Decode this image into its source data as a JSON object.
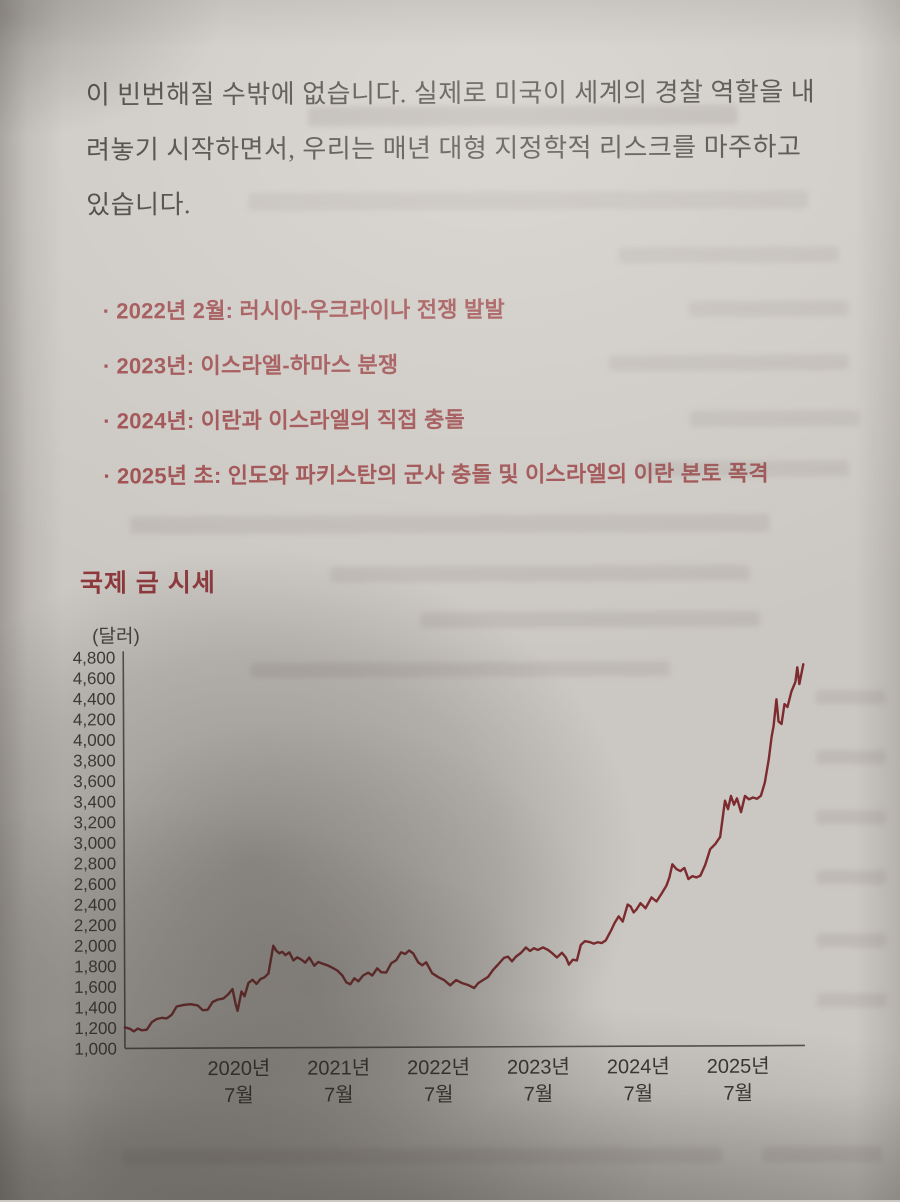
{
  "page": {
    "paragraph_lines": [
      "이 빈번해질 수밖에 없습니다. 실제로 미국이 세계의 경찰 역할을 내",
      "려놓기 시작하면서, 우리는 매년 대형 지정학적 리스크를 마주하고",
      "있습니다."
    ],
    "bullet_marker": "·",
    "bullets": [
      "2022년 2월: 러시아-우크라이나 전쟁 발발",
      "2023년: 이스라엘-하마스 분쟁",
      "2024년: 이란과 이스라엘의 직접 충돌",
      "2025년 초: 인도와 파키스탄의 군사 충돌 및 이스라엘의 이란 본토 폭격"
    ],
    "accent_colors": {
      "bullet_text": "#9c4a4c",
      "chart_title": "#8e383c"
    }
  },
  "chart_data": {
    "type": "line",
    "title": "국제 금 시세",
    "unit_label": "(달러)",
    "line_color": "#7d2b2e",
    "axis_color": "#55524d",
    "grid": false,
    "legend": false,
    "ylim": [
      1000,
      4800
    ],
    "y_ticks": [
      4800,
      4600,
      4400,
      4200,
      4000,
      3800,
      3600,
      3400,
      3200,
      3000,
      2800,
      2600,
      2400,
      2200,
      2000,
      1800,
      1600,
      1400,
      1200,
      1000
    ],
    "x_range": [
      2019.36,
      2026.17
    ],
    "x_ticks": [
      {
        "x": 2020.5,
        "line1": "2020년",
        "line2": "7월"
      },
      {
        "x": 2021.5,
        "line1": "2021년",
        "line2": "7월"
      },
      {
        "x": 2022.5,
        "line1": "2022년",
        "line2": "7월"
      },
      {
        "x": 2023.5,
        "line1": "2023년",
        "line2": "7월"
      },
      {
        "x": 2024.5,
        "line1": "2024년",
        "line2": "7월"
      },
      {
        "x": 2025.5,
        "line1": "2025년",
        "line2": "7월"
      }
    ],
    "points": [
      [
        2019.36,
        1205
      ],
      [
        2019.41,
        1190
      ],
      [
        2019.45,
        1165
      ],
      [
        2019.49,
        1192
      ],
      [
        2019.53,
        1175
      ],
      [
        2019.58,
        1182
      ],
      [
        2019.63,
        1255
      ],
      [
        2019.68,
        1285
      ],
      [
        2019.73,
        1295
      ],
      [
        2019.78,
        1290
      ],
      [
        2019.83,
        1325
      ],
      [
        2019.88,
        1405
      ],
      [
        2019.95,
        1420
      ],
      [
        2020.02,
        1428
      ],
      [
        2020.09,
        1415
      ],
      [
        2020.14,
        1368
      ],
      [
        2020.19,
        1372
      ],
      [
        2020.24,
        1448
      ],
      [
        2020.29,
        1470
      ],
      [
        2020.35,
        1482
      ],
      [
        2020.4,
        1525
      ],
      [
        2020.44,
        1572
      ],
      [
        2020.47,
        1430
      ],
      [
        2020.49,
        1362
      ],
      [
        2020.53,
        1548
      ],
      [
        2020.56,
        1502
      ],
      [
        2020.6,
        1632
      ],
      [
        2020.64,
        1662
      ],
      [
        2020.68,
        1622
      ],
      [
        2020.72,
        1668
      ],
      [
        2020.76,
        1685
      ],
      [
        2020.8,
        1722
      ],
      [
        2020.85,
        1992
      ],
      [
        2020.88,
        1942
      ],
      [
        2020.91,
        1918
      ],
      [
        2020.94,
        1932
      ],
      [
        2020.97,
        1900
      ],
      [
        2021.01,
        1926
      ],
      [
        2021.05,
        1848
      ],
      [
        2021.09,
        1878
      ],
      [
        2021.13,
        1856
      ],
      [
        2021.17,
        1826
      ],
      [
        2021.21,
        1876
      ],
      [
        2021.26,
        1796
      ],
      [
        2021.3,
        1832
      ],
      [
        2021.34,
        1816
      ],
      [
        2021.39,
        1800
      ],
      [
        2021.44,
        1776
      ],
      [
        2021.49,
        1748
      ],
      [
        2021.54,
        1700
      ],
      [
        2021.58,
        1632
      ],
      [
        2021.62,
        1614
      ],
      [
        2021.66,
        1672
      ],
      [
        2021.7,
        1642
      ],
      [
        2021.75,
        1700
      ],
      [
        2021.8,
        1726
      ],
      [
        2021.84,
        1698
      ],
      [
        2021.89,
        1768
      ],
      [
        2021.93,
        1730
      ],
      [
        2021.98,
        1726
      ],
      [
        2022.03,
        1816
      ],
      [
        2022.08,
        1846
      ],
      [
        2022.13,
        1922
      ],
      [
        2022.17,
        1906
      ],
      [
        2022.21,
        1940
      ],
      [
        2022.25,
        1912
      ],
      [
        2022.3,
        1824
      ],
      [
        2022.34,
        1796
      ],
      [
        2022.38,
        1824
      ],
      [
        2022.44,
        1718
      ],
      [
        2022.5,
        1680
      ],
      [
        2022.56,
        1650
      ],
      [
        2022.62,
        1600
      ],
      [
        2022.68,
        1650
      ],
      [
        2022.74,
        1620
      ],
      [
        2022.8,
        1602
      ],
      [
        2022.86,
        1572
      ],
      [
        2022.9,
        1620
      ],
      [
        2022.95,
        1650
      ],
      [
        2023.0,
        1680
      ],
      [
        2023.05,
        1748
      ],
      [
        2023.1,
        1800
      ],
      [
        2023.16,
        1864
      ],
      [
        2023.2,
        1876
      ],
      [
        2023.24,
        1830
      ],
      [
        2023.28,
        1876
      ],
      [
        2023.33,
        1912
      ],
      [
        2023.38,
        1964
      ],
      [
        2023.42,
        1930
      ],
      [
        2023.46,
        1956
      ],
      [
        2023.5,
        1940
      ],
      [
        2023.55,
        1964
      ],
      [
        2023.6,
        1940
      ],
      [
        2023.64,
        1910
      ],
      [
        2023.69,
        1866
      ],
      [
        2023.74,
        1912
      ],
      [
        2023.78,
        1864
      ],
      [
        2023.81,
        1796
      ],
      [
        2023.85,
        1844
      ],
      [
        2023.89,
        1836
      ],
      [
        2023.93,
        1986
      ],
      [
        2023.97,
        2022
      ],
      [
        2024.02,
        2014
      ],
      [
        2024.06,
        1998
      ],
      [
        2024.1,
        2012
      ],
      [
        2024.14,
        2004
      ],
      [
        2024.18,
        2030
      ],
      [
        2024.23,
        2120
      ],
      [
        2024.27,
        2200
      ],
      [
        2024.31,
        2262
      ],
      [
        2024.35,
        2212
      ],
      [
        2024.4,
        2377
      ],
      [
        2024.43,
        2358
      ],
      [
        2024.46,
        2300
      ],
      [
        2024.49,
        2330
      ],
      [
        2024.53,
        2390
      ],
      [
        2024.58,
        2340
      ],
      [
        2024.64,
        2445
      ],
      [
        2024.69,
        2405
      ],
      [
        2024.74,
        2480
      ],
      [
        2024.79,
        2560
      ],
      [
        2024.82,
        2640
      ],
      [
        2024.85,
        2766
      ],
      [
        2024.89,
        2720
      ],
      [
        2024.93,
        2700
      ],
      [
        2024.97,
        2730
      ],
      [
        2025.01,
        2622
      ],
      [
        2025.05,
        2650
      ],
      [
        2025.09,
        2638
      ],
      [
        2025.13,
        2655
      ],
      [
        2025.18,
        2760
      ],
      [
        2025.23,
        2912
      ],
      [
        2025.28,
        2960
      ],
      [
        2025.33,
        3030
      ],
      [
        2025.38,
        3382
      ],
      [
        2025.41,
        3300
      ],
      [
        2025.44,
        3428
      ],
      [
        2025.47,
        3342
      ],
      [
        2025.5,
        3404
      ],
      [
        2025.54,
        3270
      ],
      [
        2025.58,
        3428
      ],
      [
        2025.62,
        3395
      ],
      [
        2025.66,
        3412
      ],
      [
        2025.7,
        3400
      ],
      [
        2025.74,
        3430
      ],
      [
        2025.78,
        3560
      ],
      [
        2025.82,
        3784
      ],
      [
        2025.85,
        4000
      ],
      [
        2025.87,
        4104
      ],
      [
        2025.9,
        4366
      ],
      [
        2025.92,
        4150
      ],
      [
        2025.95,
        4126
      ],
      [
        2025.98,
        4318
      ],
      [
        2026.01,
        4290
      ],
      [
        2026.05,
        4440
      ],
      [
        2026.09,
        4532
      ],
      [
        2026.11,
        4676
      ],
      [
        2026.13,
        4512
      ],
      [
        2026.17,
        4705
      ]
    ]
  }
}
